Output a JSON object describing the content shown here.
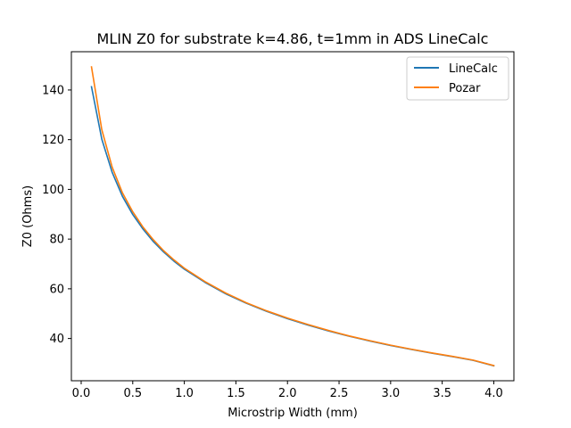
{
  "chart_data": {
    "type": "line",
    "title": "MLIN Z0 for substrate k=4.86, t=1mm in ADS LineCalc",
    "xlabel": "Microstrip Width (mm)",
    "ylabel": "Z0 (Ohms)",
    "xlim": [
      -0.095,
      4.195
    ],
    "ylim": [
      23.0,
      155.4
    ],
    "xticks": [
      0.0,
      0.5,
      1.0,
      1.5,
      2.0,
      2.5,
      3.0,
      3.5,
      4.0
    ],
    "xtick_labels": [
      "0.0",
      "0.5",
      "1.0",
      "1.5",
      "2.0",
      "2.5",
      "3.0",
      "3.5",
      "4.0"
    ],
    "yticks": [
      40,
      60,
      80,
      100,
      120,
      140
    ],
    "ytick_labels": [
      "40",
      "60",
      "80",
      "100",
      "120",
      "140"
    ],
    "grid": false,
    "legend_position": "top-right",
    "x": [
      0.1,
      0.2,
      0.3,
      0.4,
      0.5,
      0.6,
      0.7,
      0.8,
      0.9,
      1.0,
      1.2,
      1.4,
      1.6,
      1.8,
      2.0,
      2.2,
      2.4,
      2.6,
      2.8,
      3.0,
      3.2,
      3.4,
      3.6,
      3.8,
      4.0
    ],
    "series": [
      {
        "name": "LineCalc",
        "color": "#1f77b4",
        "values": [
          141.3,
          120.2,
          106.9,
          97.2,
          89.9,
          84.0,
          79.0,
          74.8,
          71.1,
          67.9,
          62.6,
          58.0,
          54.2,
          50.9,
          48.0,
          45.4,
          43.0,
          40.9,
          39.0,
          37.2,
          35.6,
          34.1,
          32.7,
          31.2,
          29.0
        ]
      },
      {
        "name": "Pozar",
        "color": "#ff7f0e",
        "values": [
          149.3,
          124.0,
          109.0,
          98.6,
          91.0,
          84.8,
          79.7,
          75.3,
          71.6,
          68.3,
          62.9,
          58.3,
          54.4,
          51.1,
          48.2,
          45.6,
          43.2,
          41.0,
          39.1,
          37.3,
          35.7,
          34.2,
          32.8,
          31.3,
          29.1
        ]
      }
    ]
  }
}
